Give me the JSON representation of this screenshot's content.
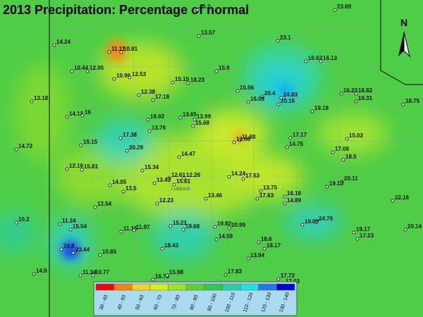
{
  "title": "2013 Precipitation: Percentage of normal",
  "north": "N",
  "places": [
    "Lubbock"
  ],
  "stations": [
    "15.2",
    "23.69",
    "14.24",
    "11.11",
    "10.81",
    "13.57",
    "23.1",
    "16.63",
    "16.13",
    "10.44",
    "12.95",
    "10.96",
    "12.53",
    "15.15",
    "18.23",
    "15.9",
    "13.18",
    "15.56",
    "20.4",
    "24.83",
    "20.15",
    "16.23",
    "18.82",
    "16.31",
    "18.75",
    "12.38",
    "17.18",
    "16.08",
    "19.18",
    "14.12",
    "16",
    "19.92",
    "13.65",
    "13.99",
    "15.68",
    "13.76",
    "11.88",
    "13.68",
    "17.17",
    "15.02",
    "17.38",
    "14.75",
    "14.72",
    "15.15",
    "20.29",
    "17.06",
    "14.47",
    "18.5",
    "12.16",
    "15.81",
    "15.34",
    "12.61",
    "12.26",
    "14.24",
    "17.53",
    "13.43",
    "15.61",
    "14.05",
    "13.5",
    "13.75",
    "20.11",
    "19.13",
    "17.63",
    "16.16",
    "14.89",
    "13.46",
    "22.16",
    "12.23",
    "12.54",
    "10.2",
    "15.21",
    "11.24",
    "15.54",
    "11.15",
    "11.97",
    "19.82",
    "20.99",
    "19.68",
    "24.79",
    "19.09",
    "20.14",
    "19.17",
    "17.23",
    "14.59",
    "18.6",
    "18.17",
    "16.8",
    "23.44",
    "18.43",
    "10.85",
    "13.94",
    "14.9",
    "11.34",
    "10.77",
    "17.83",
    "16.73",
    "15.98",
    "17.72",
    "17.03"
  ],
  "legend": [
    {
      "label": "30 - 40",
      "color": "#ff0000"
    },
    {
      "label": "40 - 50",
      "color": "#ff8000"
    },
    {
      "label": "50 - 60",
      "color": "#f5d21e"
    },
    {
      "label": "60 - 70",
      "color": "#d7f00a"
    },
    {
      "label": "70 - 80",
      "color": "#9be614"
    },
    {
      "label": "80 - 90",
      "color": "#5ad228"
    },
    {
      "label": "90 - 100",
      "color": "#32c850"
    },
    {
      "label": "100 - 110",
      "color": "#28d2a0"
    },
    {
      "label": "110 - 120",
      "color": "#14e6e6"
    },
    {
      "label": "120 - 130",
      "color": "#1e78f0"
    },
    {
      "label": "130 - 140",
      "color": "#0000e6"
    }
  ]
}
